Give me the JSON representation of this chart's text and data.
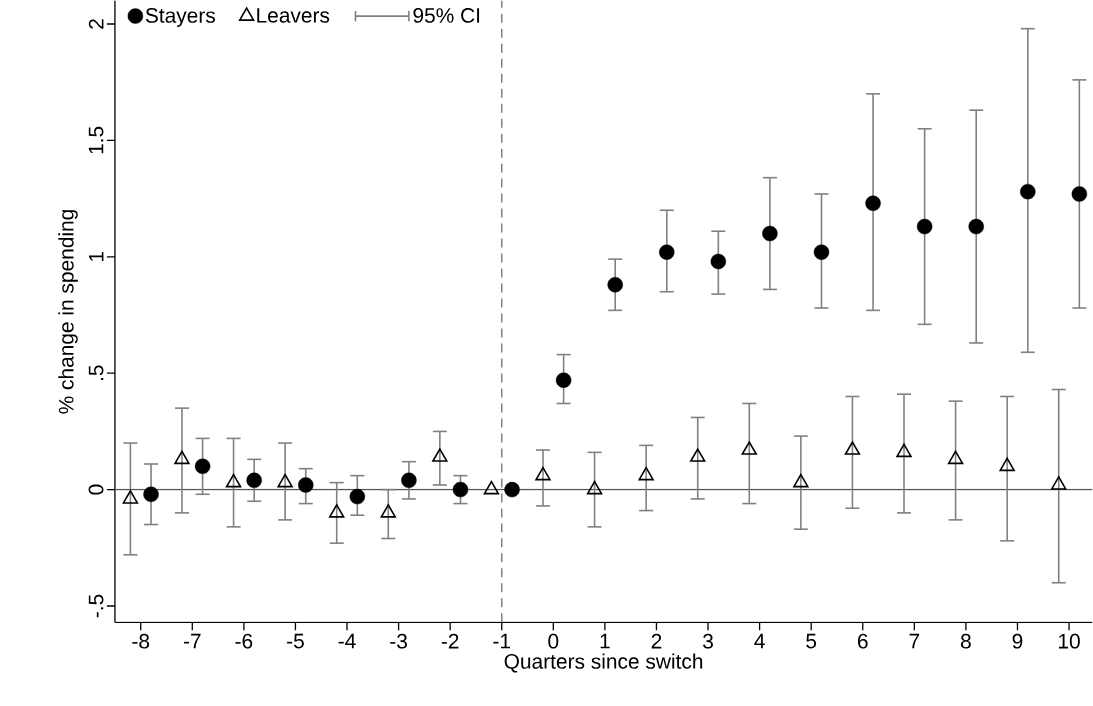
{
  "chart_data": {
    "type": "scatter",
    "xlabel": "Quarters since switch",
    "ylabel": "% change in spending",
    "annotations": [
      "95% CI"
    ],
    "xlim": [
      -8.5,
      10.45
    ],
    "ylim": [
      -0.57,
      2.1
    ],
    "xticks": [
      -8,
      -7,
      -6,
      -5,
      -4,
      -3,
      -2,
      -1,
      0,
      1,
      2,
      3,
      4,
      5,
      6,
      7,
      8,
      9,
      10
    ],
    "yticks": [
      {
        "value": -0.5,
        "label": "-.5"
      },
      0,
      {
        "value": 0.5,
        "label": ".5"
      },
      1,
      1.5,
      2
    ],
    "grid": false,
    "legend": "top left",
    "ref_lines": [
      {
        "axis": "x",
        "value": -1,
        "color": "#808080",
        "line_style": "dashed"
      },
      {
        "axis": "y",
        "value": 0,
        "color": "#555555",
        "line_style": "solid"
      }
    ],
    "series": [
      {
        "name": "Stayers",
        "color": "#000000",
        "marker": "circle",
        "x": [
          -7.8,
          -6.8,
          -5.8,
          -4.8,
          -3.8,
          -2.8,
          -1.8,
          -0.8,
          0.2,
          1.2,
          2.2,
          3.2,
          4.2,
          5.2,
          6.2,
          7.2,
          8.2,
          9.2,
          10.2
        ],
        "values": [
          -0.02,
          0.1,
          0.04,
          0.02,
          -0.03,
          0.04,
          0.0,
          0.0,
          0.47,
          0.88,
          1.02,
          0.98,
          1.1,
          1.02,
          1.23,
          1.13,
          1.13,
          1.28,
          1.27
        ],
        "errors": [
          [
            -0.15,
            0.11
          ],
          [
            -0.02,
            0.22
          ],
          [
            -0.05,
            0.13
          ],
          [
            -0.06,
            0.09
          ],
          [
            -0.11,
            0.06
          ],
          [
            -0.04,
            0.12
          ],
          [
            -0.06,
            0.06
          ],
          null,
          [
            0.37,
            0.58
          ],
          [
            0.77,
            0.99
          ],
          [
            0.85,
            1.2
          ],
          [
            0.84,
            1.11
          ],
          [
            0.86,
            1.34
          ],
          [
            0.78,
            1.27
          ],
          [
            0.77,
            1.7
          ],
          [
            0.71,
            1.55
          ],
          [
            0.63,
            1.63
          ],
          [
            0.59,
            1.98
          ],
          [
            0.78,
            1.76
          ]
        ]
      },
      {
        "name": "Leavers",
        "color": "#000000",
        "marker": "triangle",
        "x": [
          -8.2,
          -7.2,
          -6.2,
          -5.2,
          -4.2,
          -3.2,
          -2.2,
          -1.2,
          -0.2,
          0.8,
          1.8,
          2.8,
          3.8,
          4.8,
          5.8,
          6.8,
          7.8,
          8.8,
          9.8
        ],
        "values": [
          -0.04,
          0.13,
          0.03,
          0.03,
          -0.1,
          -0.1,
          0.14,
          0.0,
          0.06,
          0.0,
          0.06,
          0.14,
          0.17,
          0.03,
          0.17,
          0.16,
          0.13,
          0.1,
          0.02
        ],
        "errors": [
          [
            -0.28,
            0.2
          ],
          [
            -0.1,
            0.35
          ],
          [
            -0.16,
            0.22
          ],
          [
            -0.13,
            0.2
          ],
          [
            -0.23,
            0.03
          ],
          [
            -0.21,
            0.0
          ],
          [
            0.02,
            0.25
          ],
          null,
          [
            -0.07,
            0.17
          ],
          [
            -0.16,
            0.16
          ],
          [
            -0.09,
            0.19
          ],
          [
            -0.04,
            0.31
          ],
          [
            -0.06,
            0.37
          ],
          [
            -0.17,
            0.23
          ],
          [
            -0.08,
            0.4
          ],
          [
            -0.1,
            0.41
          ],
          [
            -0.13,
            0.38
          ],
          [
            -0.22,
            0.4
          ],
          [
            -0.4,
            0.43
          ]
        ]
      }
    ]
  }
}
